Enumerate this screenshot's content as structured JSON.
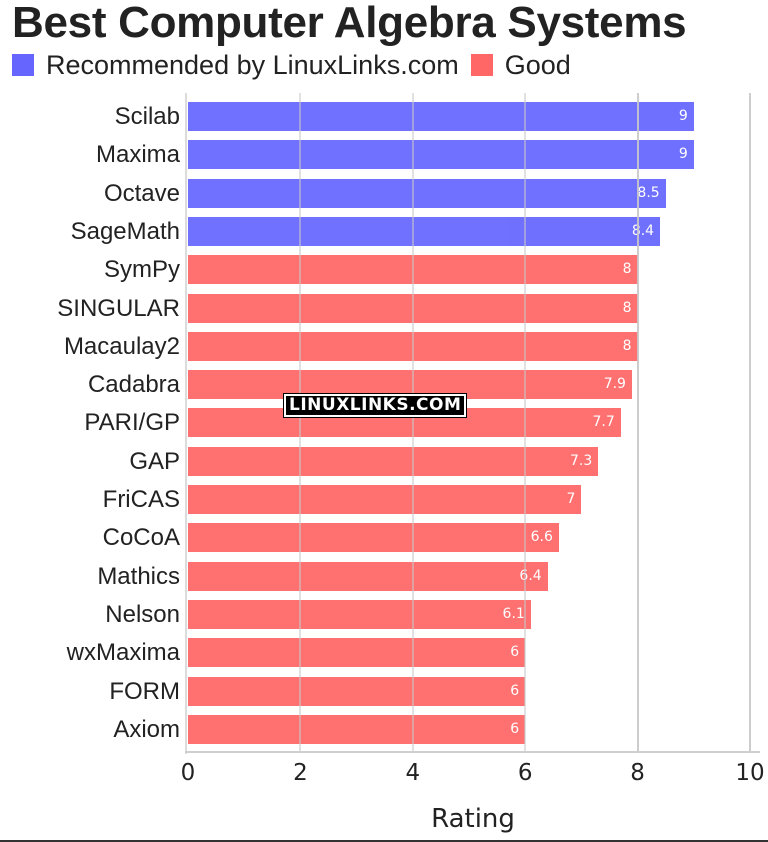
{
  "chart_data": {
    "type": "bar",
    "orientation": "horizontal",
    "title": "Best Computer Algebra Systems",
    "xlabel": "Rating",
    "ylabel": "",
    "xlim": [
      0,
      10
    ],
    "xticks": [
      "0",
      "2",
      "4",
      "6",
      "8",
      "10"
    ],
    "grid": true,
    "legend_position": "top-left",
    "legend": [
      {
        "label": "Recommended by LinuxLinks.com",
        "color": "#6666ff"
      },
      {
        "label": "Good",
        "color": "#ff6666"
      }
    ],
    "categories": [
      "Scilab",
      "Maxima",
      "Octave",
      "SageMath",
      "SymPy",
      "SINGULAR",
      "Macaulay2",
      "Cadabra",
      "PARI/GP",
      "GAP",
      "FriCAS",
      "CoCoA",
      "Mathics",
      "Nelson",
      "wxMaxima",
      "FORM",
      "Axiom"
    ],
    "values": [
      9,
      9,
      8.5,
      8.4,
      8,
      8,
      8,
      7.9,
      7.7,
      7.3,
      7,
      6.6,
      6.4,
      6.1,
      6,
      6,
      6
    ],
    "groups": [
      "Recommended by LinuxLinks.com",
      "Recommended by LinuxLinks.com",
      "Recommended by LinuxLinks.com",
      "Recommended by LinuxLinks.com",
      "Good",
      "Good",
      "Good",
      "Good",
      "Good",
      "Good",
      "Good",
      "Good",
      "Good",
      "Good",
      "Good",
      "Good",
      "Good"
    ],
    "data_labels": [
      "9",
      "9",
      "8.5",
      "8.4",
      "8",
      "8",
      "8",
      "7.9",
      "7.7",
      "7.3",
      "7",
      "6.6",
      "6.4",
      "6.1",
      "6",
      "6",
      "6"
    ],
    "annotations": [
      "LINUXLINKS.COM"
    ]
  },
  "colors": {
    "recommended": "#6666ff",
    "good": "#ff6666",
    "grid": "#c8c8c8"
  },
  "watermark": "LINUXLINKS.COM"
}
